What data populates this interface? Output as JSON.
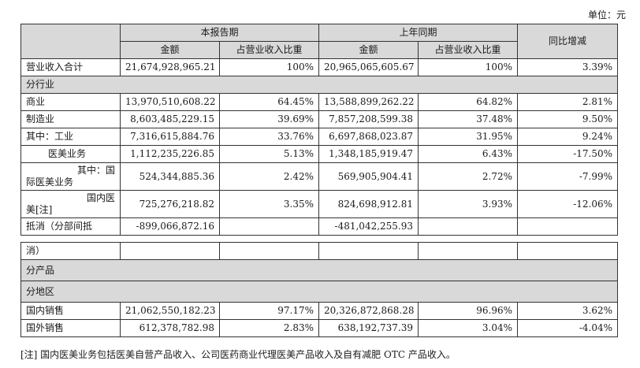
{
  "unit_label": "单位：元",
  "headers": {
    "current_period": "本报告期",
    "prior_period": "上年同期",
    "yoy_change": "同比增减",
    "amount": "金额",
    "share": "占营业收入比重"
  },
  "rows": {
    "total": [
      "营业收入合计",
      "21,674,928,965.21",
      "100%",
      "20,965,065,605.67",
      "100%",
      "3.39%"
    ],
    "by_industry": "分行业",
    "commerce": [
      "商业",
      "13,970,510,608.22",
      "64.45%",
      "13,588,899,262.22",
      "64.82%",
      "2.81%"
    ],
    "manufacturing": [
      "制造业",
      "8,603,485,229.15",
      "39.69%",
      "7,857,208,599.38",
      "37.48%",
      "9.50%"
    ],
    "industrial": [
      "其中：工业",
      "7,316,615,884.76",
      "33.76%",
      "6,697,868,023.87",
      "31.95%",
      "9.24%"
    ],
    "medical_beauty": [
      "医美业务",
      "1,112,235,226.85",
      "5.13%",
      "1,348,185,919.47",
      "6.43%",
      "-17.50%"
    ],
    "intl_beauty": [
      "其中：国",
      "际医美业务",
      "524,344,885.36",
      "2.42%",
      "569,905,904.41",
      "2.72%",
      "-7.99%"
    ],
    "domestic_beauty": [
      "国内医",
      "美[注]",
      "725,276,218.82",
      "3.35%",
      "824,698,912.81",
      "3.93%",
      "-12.06%"
    ],
    "elimination": [
      "抵消（分部间抵",
      "-899,066,872.16",
      "",
      "-481,042,255.93",
      "",
      ""
    ],
    "elimination_cont": [
      "消）",
      "",
      "",
      "",
      "",
      ""
    ],
    "by_product": "分产品",
    "by_region": "分地区",
    "domestic_sales": [
      "国内销售",
      "21,062,550,182.23",
      "97.17%",
      "20,326,872,868.28",
      "96.96%",
      "3.62%"
    ],
    "overseas_sales": [
      "国外销售",
      "612,378,782.98",
      "2.83%",
      "638,192,737.39",
      "3.04%",
      "-4.04%"
    ]
  },
  "footnote": "[注] 国内医美业务包括医美自营产品收入、公司医药商业代理医美产品收入及自有减肥 OTC 产品收入。"
}
